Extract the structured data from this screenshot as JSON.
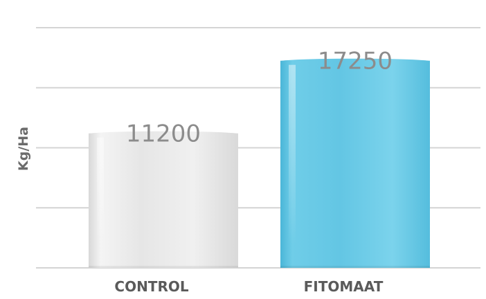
{
  "chart_data": {
    "type": "bar",
    "categories": [
      "CONTROL",
      "FITOMAAT"
    ],
    "values": [
      11200,
      17250
    ],
    "data_labels": [
      "11200",
      "17250"
    ],
    "ylabel": "Kg/Ha",
    "xlabel": "",
    "ylim": [
      0,
      20000
    ],
    "grid": true,
    "legend": "none",
    "colors": {
      "CONTROL": "#e4e4e4",
      "FITOMAAT": "#6ccae6",
      "grid": "#d4d4d4",
      "text": "#5a5a5a",
      "data_label": "#8c8c8c"
    }
  }
}
